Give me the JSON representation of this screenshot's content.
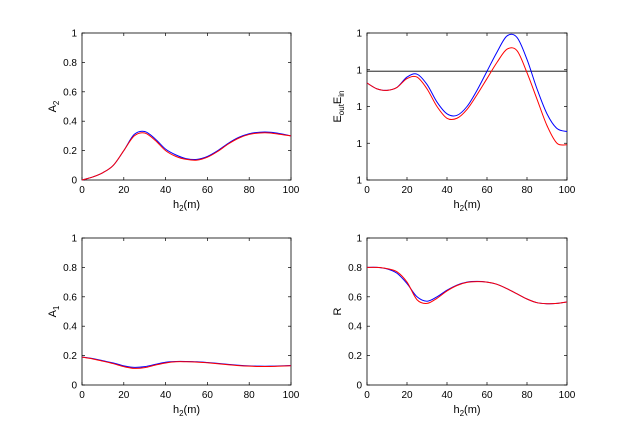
{
  "chart_data": [
    {
      "type": "line",
      "panel": "top-left",
      "xlabel": "h",
      "xlabel_sub": "2",
      "xlabel_suffix": "(m)",
      "ylabel": "A",
      "ylabel_sub": "2",
      "xlim": [
        0,
        100
      ],
      "ylim": [
        0,
        1
      ],
      "xticks": [
        "0",
        "20",
        "40",
        "60",
        "80",
        "100"
      ],
      "yticks": [
        "0",
        "0.2",
        "0.4",
        "0.6",
        "0.8",
        "1"
      ],
      "grid": false,
      "x": [
        0,
        5,
        10,
        15,
        20,
        25,
        30,
        35,
        40,
        45,
        50,
        55,
        60,
        65,
        70,
        75,
        80,
        85,
        90,
        95,
        100
      ],
      "series": [
        {
          "color": "#0000ff",
          "values": [
            0.0,
            0.02,
            0.05,
            0.1,
            0.2,
            0.31,
            0.33,
            0.28,
            0.21,
            0.17,
            0.145,
            0.14,
            0.16,
            0.2,
            0.25,
            0.29,
            0.315,
            0.325,
            0.325,
            0.315,
            0.3
          ]
        },
        {
          "color": "#ff0000",
          "values": [
            0.0,
            0.02,
            0.05,
            0.1,
            0.2,
            0.3,
            0.32,
            0.27,
            0.2,
            0.16,
            0.14,
            0.135,
            0.155,
            0.195,
            0.245,
            0.285,
            0.31,
            0.32,
            0.32,
            0.31,
            0.3
          ]
        }
      ]
    },
    {
      "type": "line",
      "panel": "top-right",
      "xlabel": "h",
      "xlabel_sub": "2",
      "xlabel_suffix": "(m)",
      "ylabel_parts": [
        "E",
        "out",
        "E",
        "in"
      ],
      "xlim": [
        0,
        100
      ],
      "ylim": [
        0,
        1
      ],
      "xticks": [
        "0",
        "20",
        "40",
        "60",
        "80",
        "100"
      ],
      "yticks": [
        "1",
        "1",
        "1",
        "1",
        "1"
      ],
      "grid": false,
      "reference_line": 0.74,
      "x": [
        0,
        5,
        10,
        15,
        20,
        25,
        30,
        35,
        40,
        45,
        50,
        55,
        60,
        65,
        70,
        75,
        80,
        85,
        90,
        95,
        100
      ],
      "series": [
        {
          "color": "#0000ff",
          "values": [
            0.66,
            0.62,
            0.61,
            0.63,
            0.7,
            0.72,
            0.65,
            0.53,
            0.45,
            0.44,
            0.5,
            0.61,
            0.74,
            0.87,
            0.98,
            0.97,
            0.82,
            0.62,
            0.45,
            0.35,
            0.33
          ]
        },
        {
          "color": "#ff0000",
          "values": [
            0.66,
            0.62,
            0.61,
            0.63,
            0.69,
            0.7,
            0.62,
            0.5,
            0.42,
            0.42,
            0.48,
            0.58,
            0.69,
            0.8,
            0.89,
            0.88,
            0.73,
            0.55,
            0.37,
            0.25,
            0.24
          ]
        }
      ]
    },
    {
      "type": "line",
      "panel": "bottom-left",
      "xlabel": "h",
      "xlabel_sub": "2",
      "xlabel_suffix": "(m)",
      "ylabel": "A",
      "ylabel_sub": "1",
      "xlim": [
        0,
        100
      ],
      "ylim": [
        0,
        1
      ],
      "xticks": [
        "0",
        "20",
        "40",
        "60",
        "80",
        "100"
      ],
      "yticks": [
        "0",
        "0.2",
        "0.4",
        "0.6",
        "0.8",
        "1"
      ],
      "grid": false,
      "x": [
        0,
        5,
        10,
        15,
        20,
        25,
        30,
        35,
        40,
        45,
        50,
        55,
        60,
        65,
        70,
        75,
        80,
        85,
        90,
        95,
        100
      ],
      "series": [
        {
          "color": "#0000ff",
          "values": [
            0.19,
            0.18,
            0.165,
            0.15,
            0.13,
            0.12,
            0.125,
            0.14,
            0.155,
            0.16,
            0.16,
            0.158,
            0.153,
            0.147,
            0.14,
            0.134,
            0.13,
            0.128,
            0.128,
            0.13,
            0.133
          ]
        },
        {
          "color": "#ff0000",
          "values": [
            0.19,
            0.178,
            0.162,
            0.145,
            0.125,
            0.113,
            0.118,
            0.135,
            0.15,
            0.158,
            0.158,
            0.156,
            0.151,
            0.145,
            0.138,
            0.132,
            0.128,
            0.126,
            0.126,
            0.128,
            0.131
          ]
        }
      ]
    },
    {
      "type": "line",
      "panel": "bottom-right",
      "xlabel": "h",
      "xlabel_sub": "2",
      "xlabel_suffix": "(m)",
      "ylabel": "R",
      "xlim": [
        0,
        100
      ],
      "ylim": [
        0,
        1
      ],
      "xticks": [
        "0",
        "20",
        "40",
        "60",
        "80",
        "100"
      ],
      "yticks": [
        "0",
        "0.2",
        "0.4",
        "0.6",
        "0.8",
        "1"
      ],
      "grid": false,
      "x": [
        0,
        5,
        10,
        15,
        20,
        25,
        30,
        35,
        40,
        45,
        50,
        55,
        60,
        65,
        70,
        75,
        80,
        85,
        90,
        95,
        100
      ],
      "series": [
        {
          "color": "#0000ff",
          "values": [
            0.8,
            0.8,
            0.79,
            0.76,
            0.69,
            0.6,
            0.57,
            0.6,
            0.645,
            0.68,
            0.7,
            0.705,
            0.7,
            0.685,
            0.655,
            0.62,
            0.585,
            0.56,
            0.553,
            0.555,
            0.565
          ]
        },
        {
          "color": "#ff0000",
          "values": [
            0.8,
            0.8,
            0.792,
            0.77,
            0.7,
            0.58,
            0.555,
            0.59,
            0.64,
            0.677,
            0.698,
            0.703,
            0.7,
            0.685,
            0.655,
            0.62,
            0.585,
            0.56,
            0.553,
            0.555,
            0.565
          ]
        }
      ]
    }
  ]
}
